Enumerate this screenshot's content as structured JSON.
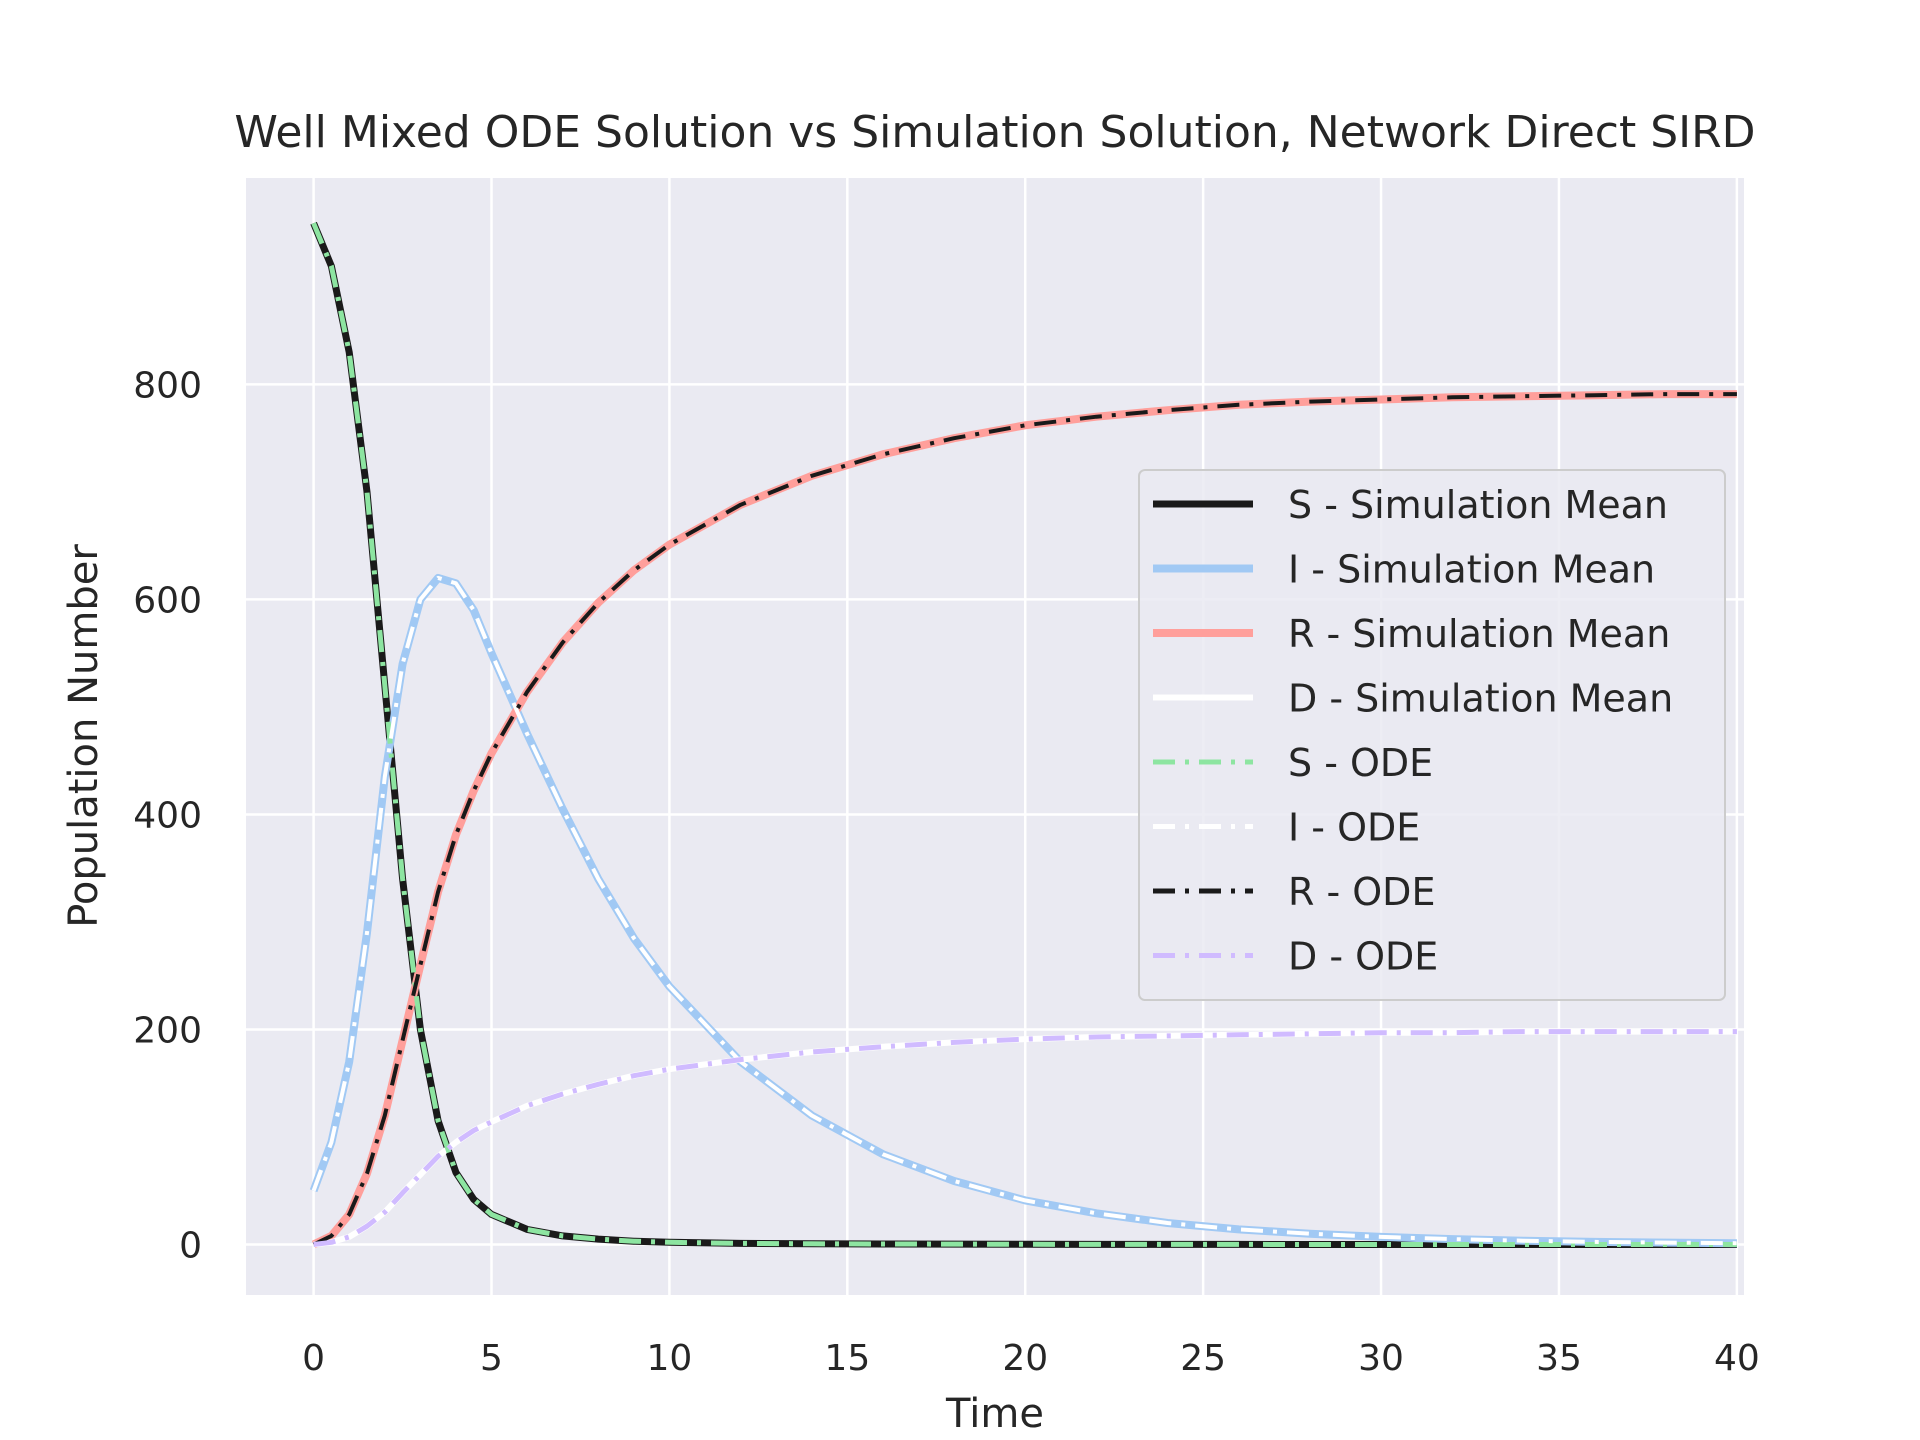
{
  "chart_data": {
    "type": "line",
    "title": "Well Mixed ODE Solution vs Simulation Solution, Network Direct SIRD",
    "xlabel": "Time",
    "ylabel": "Population Number",
    "xlim": [
      -1.9,
      40.2
    ],
    "ylim": [
      -47,
      992
    ],
    "x_ticks": [
      0,
      5,
      10,
      15,
      20,
      25,
      30,
      35,
      40
    ],
    "y_ticks": [
      0,
      200,
      400,
      600,
      800
    ],
    "grid": true,
    "legend_position": "center-right",
    "background_color": "#eaeaf2",
    "grid_color": "#ffffff",
    "x": [
      0,
      0.5,
      1,
      1.5,
      2,
      2.5,
      3,
      3.5,
      4,
      4.5,
      5,
      6,
      7,
      8,
      9,
      10,
      12,
      14,
      16,
      18,
      20,
      22,
      24,
      26,
      28,
      30,
      32,
      34,
      36,
      38,
      40
    ],
    "series": [
      {
        "name": "S - Simulation Mean",
        "color": "#1a1a1a",
        "style": "solid",
        "width": 7,
        "values": [
          950,
          910,
          830,
          700,
          520,
          340,
          200,
          115,
          67,
          42,
          28,
          14,
          8,
          5,
          3,
          2,
          1,
          0.6,
          0.4,
          0.3,
          0.2,
          0.1,
          0.1,
          0.1,
          0,
          0,
          0,
          0,
          0,
          0,
          0
        ]
      },
      {
        "name": "I - Simulation Mean",
        "color": "#a1c9f4",
        "style": "solid",
        "width": 8,
        "values": [
          50,
          95,
          170,
          290,
          435,
          540,
          600,
          620,
          615,
          590,
          550,
          475,
          405,
          340,
          285,
          240,
          170,
          120,
          84,
          59,
          41,
          29,
          20,
          14,
          10,
          7,
          5,
          3.5,
          2.4,
          1.7,
          1.2
        ]
      },
      {
        "name": "R - Simulation Mean",
        "color": "#ff9f9b",
        "style": "solid",
        "width": 8,
        "values": [
          0,
          8,
          28,
          66,
          120,
          190,
          260,
          328,
          381,
          422,
          457,
          514,
          560,
          597,
          627,
          651,
          688,
          715,
          735,
          750,
          762,
          770,
          776,
          781,
          784,
          786,
          788,
          789,
          790,
          791,
          791
        ]
      },
      {
        "name": "D - Simulation Mean",
        "color": "#ffffff",
        "style": "solid",
        "width": 6,
        "values": [
          0,
          2,
          7,
          17,
          30,
          48,
          65,
          82,
          95,
          106,
          114,
          129,
          140,
          149,
          157,
          163,
          172,
          179,
          184,
          188,
          191,
          193,
          194,
          195,
          196,
          197,
          197,
          198,
          198,
          198,
          198
        ]
      },
      {
        "name": "S - ODE",
        "color": "#8de5a1",
        "style": "dashdot",
        "width": 5,
        "values": [
          950,
          910,
          830,
          700,
          520,
          340,
          200,
          115,
          67,
          42,
          28,
          14,
          8,
          5,
          3,
          2,
          1,
          0.6,
          0.4,
          0.3,
          0.2,
          0.1,
          0.1,
          0.1,
          0,
          0,
          0,
          0,
          0,
          0,
          0
        ]
      },
      {
        "name": "I - ODE",
        "color": "#ffffff",
        "style": "dashdot",
        "width": 4,
        "values": [
          50,
          95,
          170,
          290,
          435,
          540,
          600,
          620,
          615,
          590,
          550,
          475,
          405,
          340,
          285,
          240,
          170,
          120,
          84,
          59,
          41,
          29,
          20,
          14,
          10,
          7,
          5,
          3.5,
          2.4,
          1.7,
          1.2
        ]
      },
      {
        "name": "R - ODE",
        "color": "#1a1a1a",
        "style": "dashdot",
        "width": 4,
        "values": [
          0,
          8,
          28,
          66,
          120,
          190,
          260,
          328,
          381,
          422,
          457,
          514,
          560,
          597,
          627,
          651,
          688,
          715,
          735,
          750,
          762,
          770,
          776,
          781,
          784,
          786,
          788,
          789,
          790,
          791,
          791
        ]
      },
      {
        "name": "D - ODE",
        "color": "#d0bbff",
        "style": "dashdot",
        "width": 5,
        "values": [
          0,
          2,
          7,
          17,
          30,
          48,
          65,
          82,
          95,
          106,
          114,
          129,
          140,
          149,
          157,
          163,
          172,
          179,
          184,
          188,
          191,
          193,
          194,
          195,
          196,
          197,
          197,
          198,
          198,
          198,
          198
        ]
      }
    ]
  }
}
